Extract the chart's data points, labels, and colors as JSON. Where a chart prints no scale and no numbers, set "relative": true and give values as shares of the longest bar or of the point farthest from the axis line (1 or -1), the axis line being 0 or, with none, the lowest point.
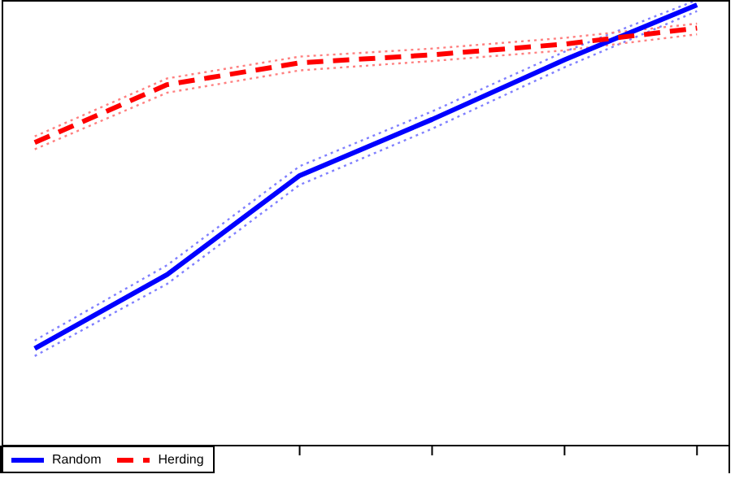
{
  "chart_data": {
    "type": "line",
    "relative": true,
    "categories": [
      null,
      null,
      null,
      null,
      null,
      null
    ],
    "legend": "bottom left",
    "series": [
      {
        "name": "Random",
        "color": "#0000ff",
        "line_style": "solid",
        "values": [
          0.218,
          0.384,
          0.606,
          0.732,
          0.866,
          0.989
        ]
      },
      {
        "name": "Herding",
        "color": "#ff0000",
        "line_style": "dashed",
        "values": [
          0.68,
          0.81,
          0.859,
          0.877,
          0.901,
          0.937
        ]
      },
      {
        "color": "#8080ff",
        "line_style": "dotted",
        "values": [
          0.201,
          0.363,
          0.585,
          0.711,
          0.849,
          0.975
        ]
      },
      {
        "color": "#8080ff",
        "line_style": "dotted",
        "values": [
          0.236,
          0.405,
          0.627,
          0.75,
          0.884,
          1
        ]
      },
      {
        "color": "#ff8080",
        "line_style": "dotted",
        "values": [
          0.665,
          0.792,
          0.842,
          0.863,
          0.887,
          0.923
        ]
      },
      {
        "color": "#ff8080",
        "line_style": "dotted",
        "values": [
          0.694,
          0.824,
          0.873,
          0.891,
          0.915,
          0.947
        ]
      }
    ]
  }
}
